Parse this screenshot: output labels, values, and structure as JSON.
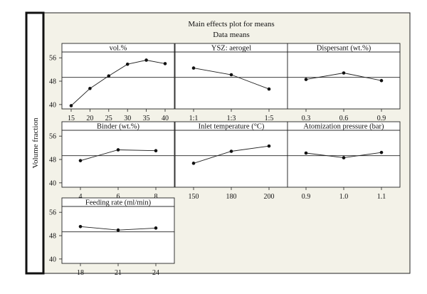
{
  "chart_data": {
    "type": "line",
    "title": "Main effects plot for means",
    "subtitle": "Data means",
    "ylabel": "Volume fraction",
    "ylim": [
      38.5,
      58
    ],
    "yticks": [
      "40",
      "48",
      "56"
    ],
    "grand_mean": 49.3,
    "colors": {
      "background": "#f3f2e8",
      "series": "#111111",
      "frame": "#222222"
    },
    "panels": [
      {
        "title": "vol.%",
        "categories": [
          "15",
          "20",
          "25",
          "30",
          "35",
          "40"
        ],
        "values": [
          39.6,
          45.5,
          49.8,
          53.8,
          55.2,
          54.0
        ]
      },
      {
        "title": "YSZ: aerogel",
        "categories": [
          "1:1",
          "1:3",
          "1:5"
        ],
        "values": [
          52.5,
          50.2,
          45.3
        ]
      },
      {
        "title": "Dispersant (wt.%)",
        "categories": [
          "0.3",
          "0.6",
          "0.9"
        ],
        "values": [
          48.6,
          50.8,
          48.2
        ]
      },
      {
        "title": "Binder (wt.%)",
        "categories": [
          "4",
          "6",
          "8"
        ],
        "values": [
          47.6,
          51.3,
          51.0
        ]
      },
      {
        "title": "Inlet temperature (°C)",
        "categories": [
          "150",
          "180",
          "200"
        ],
        "values": [
          46.7,
          50.8,
          52.6
        ]
      },
      {
        "title": "Atomization pressure (bar)",
        "categories": [
          "0.9",
          "1.0",
          "1.1"
        ],
        "values": [
          50.2,
          48.6,
          50.4
        ]
      },
      {
        "title": "Feeding rate (ml/min)",
        "categories": [
          "18",
          "21",
          "24"
        ],
        "values": [
          51.1,
          49.9,
          50.6
        ]
      }
    ]
  }
}
